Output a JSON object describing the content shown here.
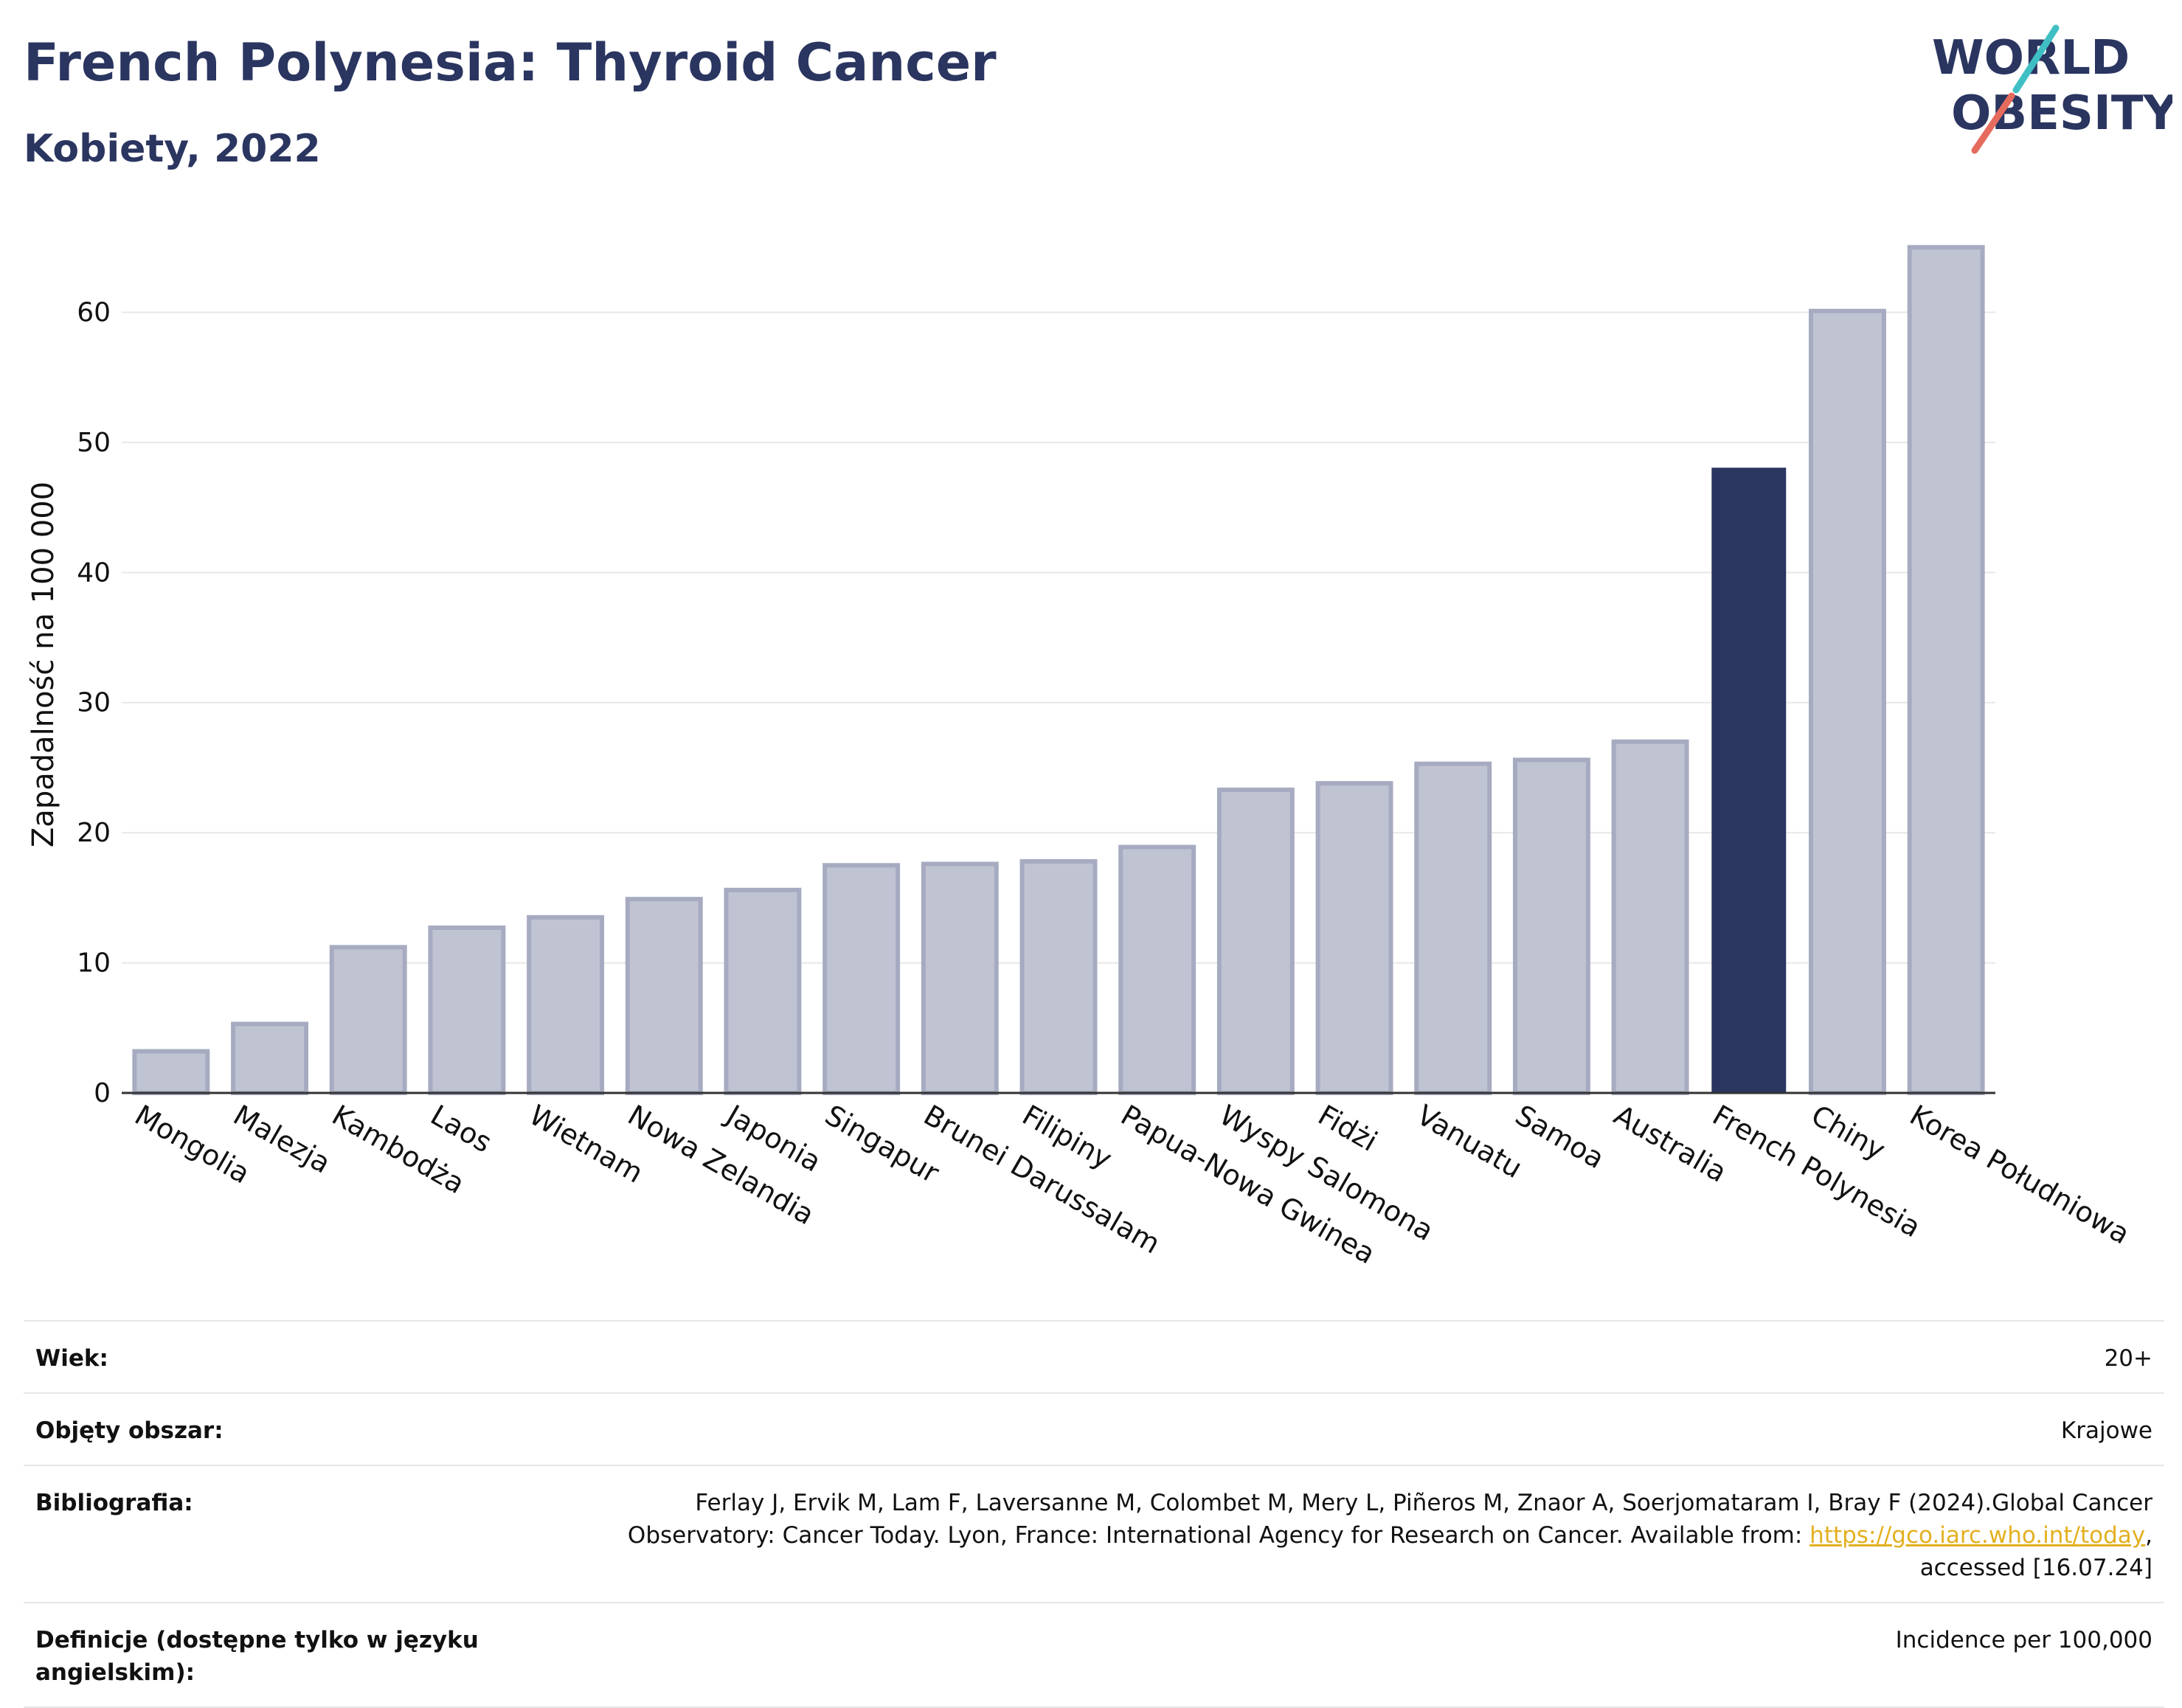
{
  "header": {
    "title": "French Polynesia: Thyroid Cancer",
    "subtitle": "Kobiety, 2022"
  },
  "logo": {
    "line1": "WORLD",
    "line2": "OBESITY",
    "slash_colors": [
      "#3fbfc4",
      "#e56b5d"
    ],
    "text_color": "#2a3560"
  },
  "colors": {
    "highlight": "#2a3560",
    "bar": "#c0c3d1",
    "bar_stroke": "#a7abc1",
    "grid": "#e8e8e8",
    "axis": "#333333",
    "link": "#e3b020"
  },
  "chart_data": {
    "type": "bar",
    "categories": [
      "Mongolia",
      "Malezja",
      "Kambodża",
      "Laos",
      "Wietnam",
      "Nowa Zelandia",
      "Japonia",
      "Singapur",
      "Brunei Darussalam",
      "Filipiny",
      "Papua-Nowa Gwinea",
      "Wyspy Salomona",
      "Fidżi",
      "Vanuatu",
      "Samoa",
      "Australia",
      "French Polynesia",
      "Chiny",
      "Korea Południowa"
    ],
    "values": [
      3.2,
      5.3,
      11.2,
      12.7,
      13.5,
      14.9,
      15.6,
      17.5,
      17.6,
      17.8,
      18.9,
      23.3,
      23.8,
      25.3,
      25.6,
      27.0,
      48.0,
      60.1,
      65.0
    ],
    "highlight": "French Polynesia",
    "ylabel": "Zapadalność na 100 000",
    "xlabel": "",
    "yticks": [
      0,
      10,
      20,
      30,
      40,
      50,
      60
    ],
    "ylim": [
      0,
      67
    ],
    "grid": true
  },
  "info": {
    "rows": [
      {
        "label": "Wiek:",
        "value": "20+"
      },
      {
        "label": "Objęty obszar:",
        "value": "Krajowe"
      },
      {
        "label": "Bibliografia:",
        "value_pre": "Ferlay J, Ervik M, Lam F, Laversanne M, Colombet M, Mery L, Piñeros M, Znaor A, Soerjomataram I, Bray F (2024).Global Cancer Observatory: Cancer Today. Lyon, France: International Agency for Research on Cancer. Available from: ",
        "link": "https://gco.iarc.who.int/today",
        "value_post": ", accessed [16.07.24]"
      },
      {
        "label": "Definicje (dostępne tylko w języku angielskim):",
        "value": "Incidence per 100,000"
      }
    ]
  }
}
